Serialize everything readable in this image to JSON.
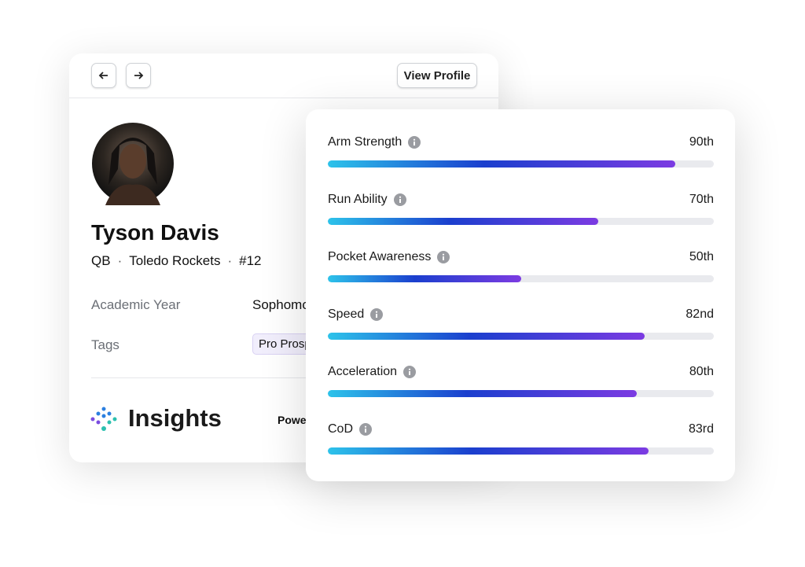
{
  "header": {
    "view_profile": "View Profile"
  },
  "profile": {
    "name": "Tyson Davis",
    "position": "QB",
    "team": "Toledo Rockets",
    "number": "#12",
    "fields": [
      {
        "label": "Academic Year",
        "value": "Sophomore"
      },
      {
        "label": "Tags",
        "value": "Pro Prospect"
      }
    ]
  },
  "insights": {
    "title": "Insights",
    "powered": "Powered by"
  },
  "metrics": {
    "xlim": [
      0,
      100
    ],
    "items": [
      {
        "label": "Arm Strength",
        "value": 90,
        "value_label": "90th"
      },
      {
        "label": "Run Ability",
        "value": 70,
        "value_label": "70th"
      },
      {
        "label": "Pocket Awareness",
        "value": 50,
        "value_label": "50th"
      },
      {
        "label": "Speed",
        "value": 82,
        "value_label": "82nd"
      },
      {
        "label": "Acceleration",
        "value": 80,
        "value_label": "80th"
      },
      {
        "label": "CoD",
        "value": 83,
        "value_label": "83rd"
      }
    ]
  }
}
